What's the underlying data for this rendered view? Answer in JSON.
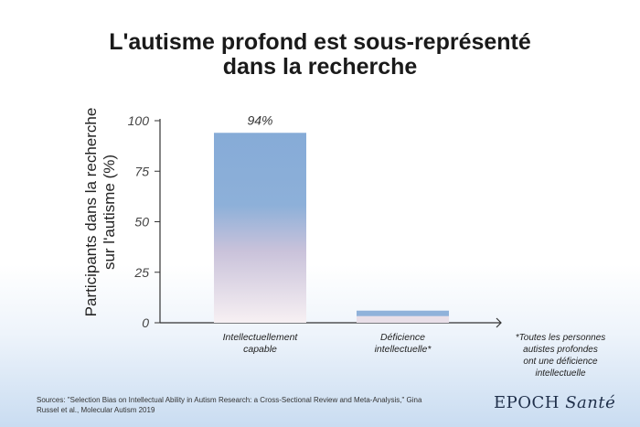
{
  "title_line1": "L'autisme profond est sous-représenté",
  "title_line2": "dans la recherche",
  "chart_data": {
    "type": "bar",
    "title": "L'autisme profond est sous-représenté dans la recherche",
    "ylabel_line1": "Participants dans la recherche",
    "ylabel_line2": "sur l'autisme (%)",
    "xlabel": "",
    "ylim": [
      0,
      100
    ],
    "yticks": [
      0,
      25,
      50,
      75,
      100
    ],
    "ytick_labels": [
      "0",
      "25",
      "50",
      "75",
      "100"
    ],
    "categories": [
      {
        "line1": "Intellectuellement",
        "line2": "capable"
      },
      {
        "line1": "Déficience",
        "line2": "intellectuelle*"
      }
    ],
    "values": [
      94,
      6
    ],
    "data_labels": [
      "94%",
      ""
    ],
    "colors": {
      "bar_top": "#8aaed8",
      "bar_bottom": "#f5eef2",
      "axis": "#333333"
    }
  },
  "footnote": [
    "*Toutes les personnes",
    "autistes profondes",
    "ont une déficience",
    "intellectuelle"
  ],
  "sources_line1": "Sources: \"Selection Bias on Intellectual Ability in Autism Research: a Cross-Sectional Review and Meta-Analysis,\" Gina",
  "sources_line2": "Russel et al., Molecular Autism 2019",
  "brand": {
    "name": "EPOCH",
    "suffix": "Santé"
  }
}
